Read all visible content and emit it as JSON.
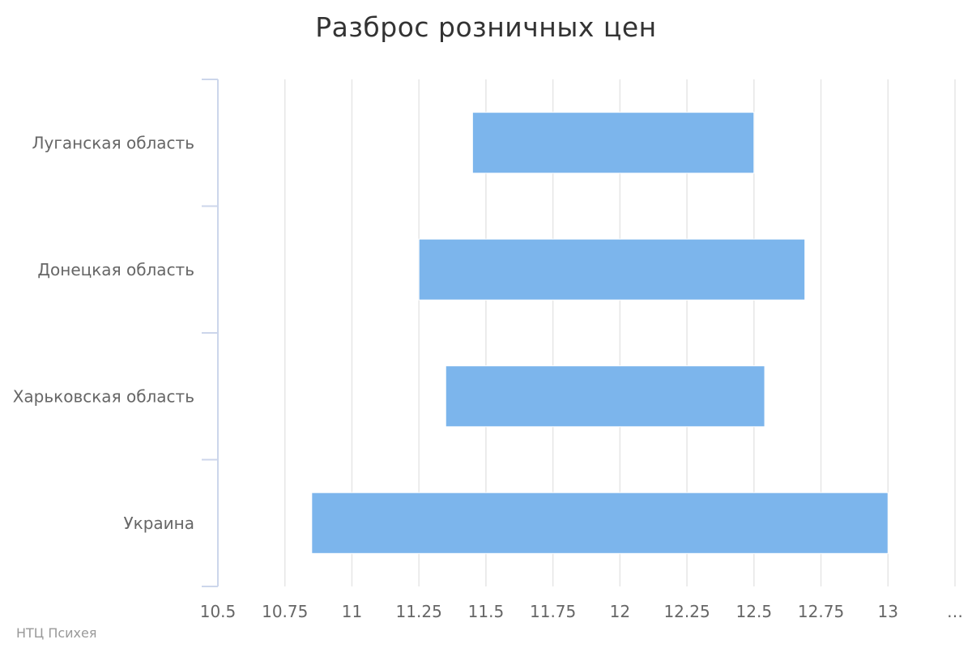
{
  "chart_data": {
    "type": "bar",
    "orientation": "horizontal",
    "range_bars": true,
    "title": "Разброс розничных цен",
    "xlabel": "",
    "ylabel": "",
    "categories": [
      "Луганская область",
      "Донецкая область",
      "Харьковская область",
      "Украина"
    ],
    "series": [
      {
        "low": [
          11.45,
          11.25,
          11.35,
          10.85
        ],
        "high": [
          12.5,
          12.69,
          12.54,
          13.0
        ]
      }
    ],
    "xlim": [
      10.5,
      13.25
    ],
    "xticks": [
      "10.5",
      "10.75",
      "11",
      "11.25",
      "11.5",
      "11.75",
      "12",
      "12.25",
      "12.5",
      "12.75",
      "13",
      "…"
    ],
    "grid": true,
    "legend": "none",
    "colors": {
      "bar": "#7cb5ec",
      "grid": "#e6e6e6",
      "axis": "#ccd6eb",
      "text": "#666666",
      "title": "#333333"
    }
  },
  "credits": "НТЦ Психея"
}
